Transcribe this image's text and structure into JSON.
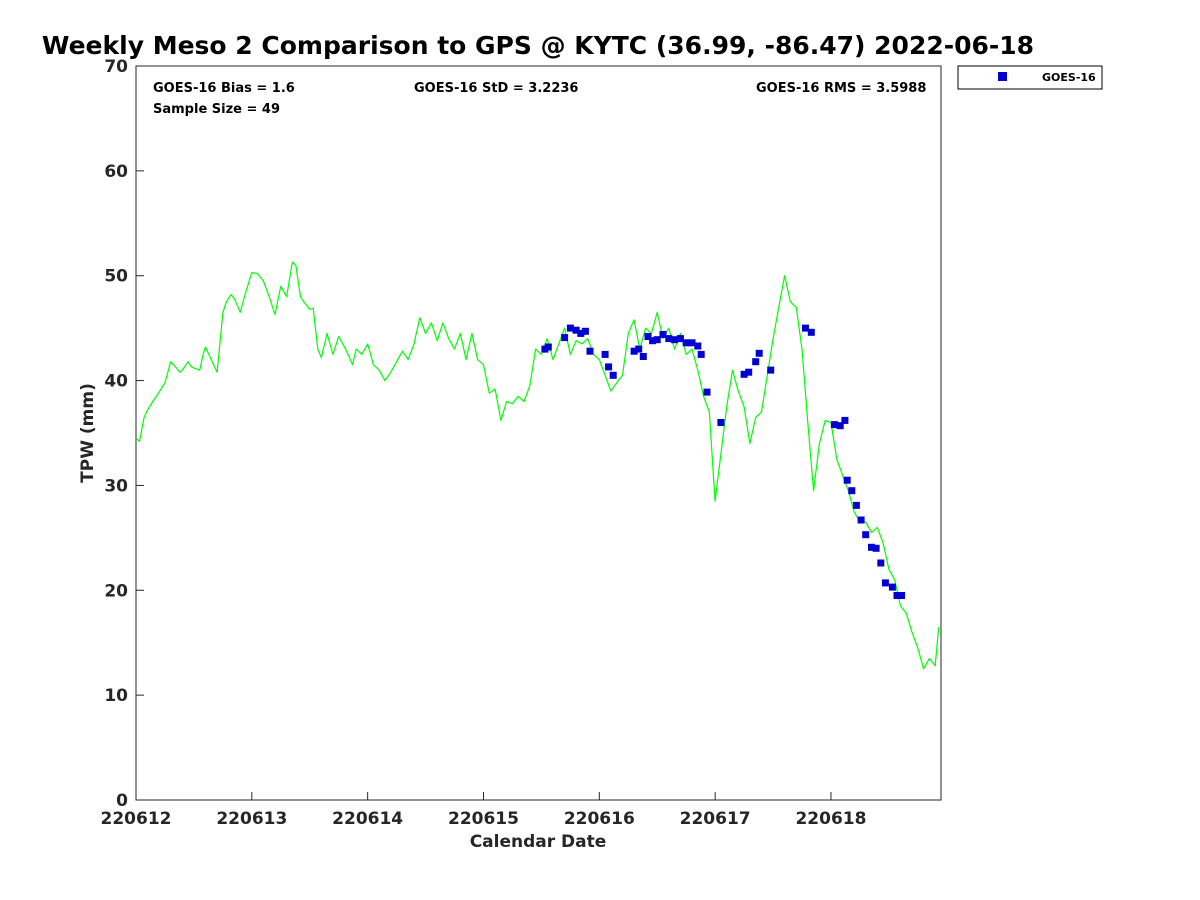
{
  "chart_data": {
    "type": "scatter",
    "title": "Weekly Meso 2 Comparison to GPS @ KYTC (36.99, -86.47) 2022-06-18",
    "xlabel": "Calendar Date",
    "ylabel": "TPW (mm)",
    "xlim": [
      0,
      6.95
    ],
    "ylim": [
      0,
      70
    ],
    "x_ticks": [
      {
        "value": 0,
        "label": "220612"
      },
      {
        "value": 1,
        "label": "220613"
      },
      {
        "value": 2,
        "label": "220614"
      },
      {
        "value": 3,
        "label": "220615"
      },
      {
        "value": 4,
        "label": "220616"
      },
      {
        "value": 5,
        "label": "220617"
      },
      {
        "value": 6,
        "label": "220618"
      }
    ],
    "y_ticks": [
      {
        "value": 0,
        "label": "0"
      },
      {
        "value": 10,
        "label": "10"
      },
      {
        "value": 20,
        "label": "20"
      },
      {
        "value": 30,
        "label": "30"
      },
      {
        "value": 40,
        "label": "40"
      },
      {
        "value": 50,
        "label": "50"
      },
      {
        "value": 60,
        "label": "60"
      },
      {
        "value": 70,
        "label": "70"
      }
    ],
    "stats": {
      "bias": "GOES-16 Bias = 1.6",
      "sample_size": "Sample Size = 49",
      "std": "GOES-16 StD = 3.2236",
      "rms": "GOES-16 RMS = 3.5988"
    },
    "legend": {
      "position": "top-right outside",
      "label": "GOES-16"
    },
    "series": [
      {
        "name": "GPS",
        "kind": "line",
        "color": "#00ff00",
        "x": [
          0,
          0.03,
          0.07,
          0.1,
          0.15,
          0.2,
          0.25,
          0.3,
          0.35,
          0.38,
          0.4,
          0.45,
          0.48,
          0.5,
          0.55,
          0.58,
          0.6,
          0.65,
          0.7,
          0.75,
          0.78,
          0.82,
          0.85,
          0.9,
          0.95,
          1,
          1.05,
          1.1,
          1.15,
          1.2,
          1.25,
          1.3,
          1.35,
          1.38,
          1.42,
          1.45,
          1.5,
          1.53,
          1.57,
          1.6,
          1.65,
          1.7,
          1.75,
          1.8,
          1.83,
          1.87,
          1.9,
          1.95,
          2,
          2.05,
          2.1,
          2.15,
          2.2,
          2.25,
          2.3,
          2.35,
          2.4,
          2.45,
          2.5,
          2.55,
          2.6,
          2.65,
          2.7,
          2.75,
          2.8,
          2.85,
          2.9,
          2.95,
          3,
          3.05,
          3.1,
          3.15,
          3.2,
          3.25,
          3.3,
          3.35,
          3.4,
          3.45,
          3.5,
          3.55,
          3.6,
          3.65,
          3.7,
          3.75,
          3.8,
          3.85,
          3.9,
          3.95,
          4,
          4.05,
          4.1,
          4.15,
          4.2,
          4.25,
          4.3,
          4.35,
          4.4,
          4.45,
          4.5,
          4.55,
          4.6,
          4.65,
          4.7,
          4.75,
          4.8,
          4.85,
          4.9,
          4.95,
          5,
          5.05,
          5.1,
          5.15,
          5.2,
          5.25,
          5.3,
          5.35,
          5.4,
          5.45,
          5.5,
          5.55,
          5.6,
          5.65,
          5.7,
          5.75,
          5.8,
          5.85,
          5.9,
          5.95,
          6,
          6.05,
          6.1,
          6.15,
          6.2,
          6.25,
          6.3,
          6.35,
          6.4,
          6.45,
          6.5,
          6.55,
          6.6,
          6.65,
          6.7,
          6.75,
          6.8,
          6.85,
          6.9,
          6.93
        ],
        "y": [
          34.5,
          34.2,
          36.5,
          37.2,
          38.1,
          38.9,
          39.8,
          41.8,
          41.2,
          40.8,
          41.0,
          41.8,
          41.3,
          41.2,
          41.0,
          42.5,
          43.2,
          42.0,
          40.8,
          46.5,
          47.5,
          48.2,
          47.8,
          46.5,
          48.5,
          50.3,
          50.2,
          49.5,
          48.0,
          46.3,
          49.0,
          48.0,
          51.3,
          51.0,
          48.0,
          47.5,
          46.8,
          46.9,
          43.0,
          42.2,
          44.5,
          42.5,
          44.2,
          43.2,
          42.5,
          41.5,
          43.0,
          42.5,
          43.5,
          41.5,
          41.0,
          40.0,
          40.8,
          41.8,
          42.8,
          42.0,
          43.5,
          46.0,
          44.5,
          45.5,
          43.8,
          45.5,
          44.0,
          43.0,
          44.5,
          42.0,
          44.5,
          42.0,
          41.5,
          38.8,
          39.2,
          36.2,
          38.0,
          37.8,
          38.5,
          38.0,
          39.5,
          43.0,
          42.5,
          44.0,
          42.0,
          43.5,
          45.0,
          42.5,
          43.8,
          43.5,
          44.0,
          42.5,
          42.0,
          40.5,
          39.0,
          39.8,
          40.5,
          44.5,
          45.8,
          43.0,
          45.0,
          44.5,
          46.5,
          44.0,
          45.0,
          43.0,
          44.5,
          42.5,
          43.0,
          41.0,
          38.5,
          37.0,
          28.5,
          33.0,
          37.5,
          41.0,
          39.0,
          37.5,
          34.0,
          36.5,
          37.0,
          40.5,
          44.0,
          47.0,
          50.0,
          47.5,
          47.0,
          43.0,
          36.0,
          29.5,
          34.0,
          36.2,
          36.0,
          32.5,
          31.0,
          29.5,
          27.5,
          26.5,
          26.5,
          25.5,
          26.0,
          24.5,
          22.0,
          21.0,
          18.5,
          17.8,
          16.0,
          14.5,
          12.5,
          13.5,
          12.8,
          16.5
        ]
      },
      {
        "name": "GOES-16",
        "kind": "scatter",
        "color": "#0000d0",
        "x": [
          3.53,
          3.56,
          3.7,
          3.75,
          3.8,
          3.84,
          3.88,
          3.92,
          4.05,
          4.08,
          4.12,
          4.3,
          4.34,
          4.38,
          4.42,
          4.46,
          4.5,
          4.55,
          4.6,
          4.65,
          4.7,
          4.75,
          4.8,
          4.85,
          4.88,
          4.93,
          5.05,
          5.25,
          5.29,
          5.35,
          5.38,
          5.48,
          5.78,
          5.83,
          6.03,
          6.08,
          6.12,
          6.14,
          6.18,
          6.22,
          6.26,
          6.3,
          6.35,
          6.39,
          6.43,
          6.47,
          6.53,
          6.57,
          6.61
        ],
        "y": [
          43.0,
          43.2,
          44.1,
          45.0,
          44.8,
          44.5,
          44.7,
          42.8,
          42.5,
          41.3,
          40.5,
          42.8,
          43.0,
          42.3,
          44.2,
          43.8,
          43.9,
          44.4,
          44.0,
          43.9,
          44.0,
          43.6,
          43.6,
          43.3,
          42.5,
          38.9,
          36.0,
          40.6,
          40.8,
          41.8,
          42.6,
          41.0,
          45.0,
          44.6,
          35.8,
          35.7,
          36.2,
          30.5,
          29.5,
          28.1,
          26.7,
          25.3,
          24.1,
          24.0,
          22.6,
          20.7,
          20.3,
          19.5,
          19.5
        ]
      }
    ]
  }
}
